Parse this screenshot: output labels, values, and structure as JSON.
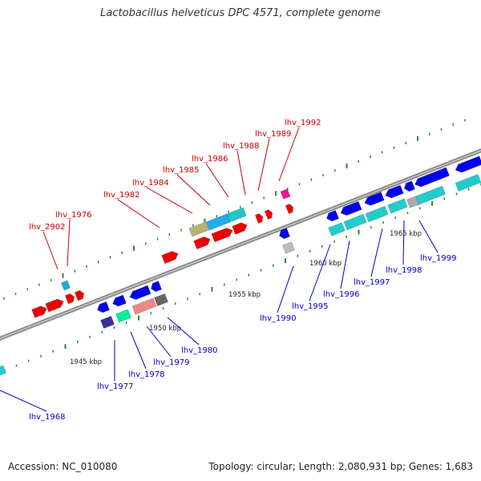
{
  "title": "Lactobacillus helveticus DPC 4571, complete genome",
  "footer": {
    "accession": "Accession: NC_010080",
    "topology": "Topology: circular; Length: 2,080,931 bp; Genes: 1,683"
  },
  "colors": {
    "backbone": "#8a8a8a",
    "tick": "#2e8b2e",
    "label_top": "#cc0000",
    "label_bottom": "#0000cc",
    "scale_text": "#222222"
  },
  "scale_labels": [
    "1945 kbp",
    "1950 kbp",
    "1955 kbp",
    "1960 kbp",
    "1965 kbp"
  ],
  "gene_labels_top": [
    "lhv_2902",
    "lhv_1976",
    "lhv_1982",
    "lhv_1984",
    "lhv_1985",
    "lhv_1986",
    "lhv_1988",
    "lhv_1989",
    "lhv_1992"
  ],
  "gene_labels_bottom": [
    "lhv_1968",
    "lhv_1977",
    "lhv_1978",
    "lhv_1979",
    "lhv_1980",
    "lhv_1990",
    "lhv_1995",
    "lhv_1996",
    "lhv_1997",
    "lhv_1998",
    "lhv_1999"
  ]
}
